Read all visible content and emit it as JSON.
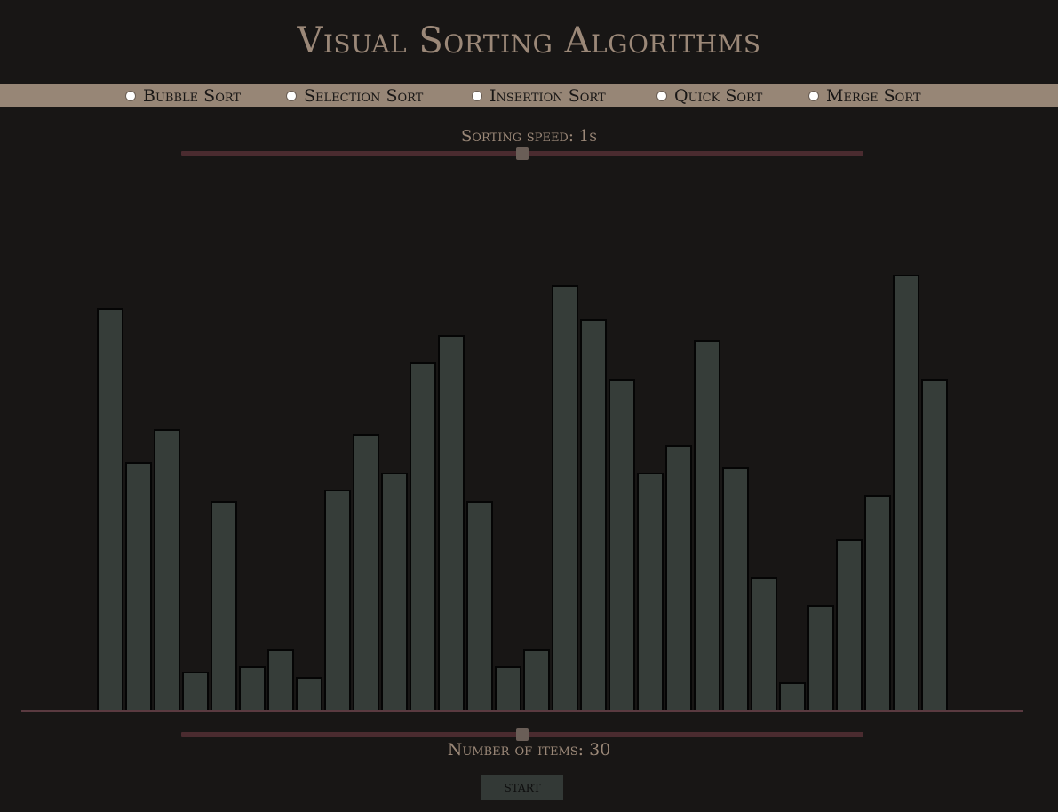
{
  "title": "Visual Sorting Algorithms",
  "algorithms": [
    {
      "label": "Bubble Sort",
      "selected": false
    },
    {
      "label": "Selection Sort",
      "selected": false
    },
    {
      "label": "Insertion Sort",
      "selected": false
    },
    {
      "label": "Quick Sort",
      "selected": false
    },
    {
      "label": "Merge Sort",
      "selected": false
    }
  ],
  "speed": {
    "label": "Sorting speed: 1s",
    "value_fraction": 0.5
  },
  "items": {
    "label": "Number of items: 30",
    "value_fraction": 0.5
  },
  "start_label": "START",
  "colors": {
    "background": "#181615",
    "accent": "#978676",
    "bar_fill": "#363d39",
    "bar_stroke": "#050505",
    "slider_track": "#4a2b2f",
    "slider_thumb": "#6a5e57"
  },
  "chart_data": {
    "type": "bar",
    "values": [
      452,
      279,
      316,
      43,
      235,
      49,
      68,
      37,
      248,
      310,
      267,
      391,
      422,
      235,
      49,
      68,
      478,
      440,
      372,
      267,
      298,
      416,
      273,
      149,
      31,
      118,
      192,
      242,
      490,
      372
    ]
  }
}
